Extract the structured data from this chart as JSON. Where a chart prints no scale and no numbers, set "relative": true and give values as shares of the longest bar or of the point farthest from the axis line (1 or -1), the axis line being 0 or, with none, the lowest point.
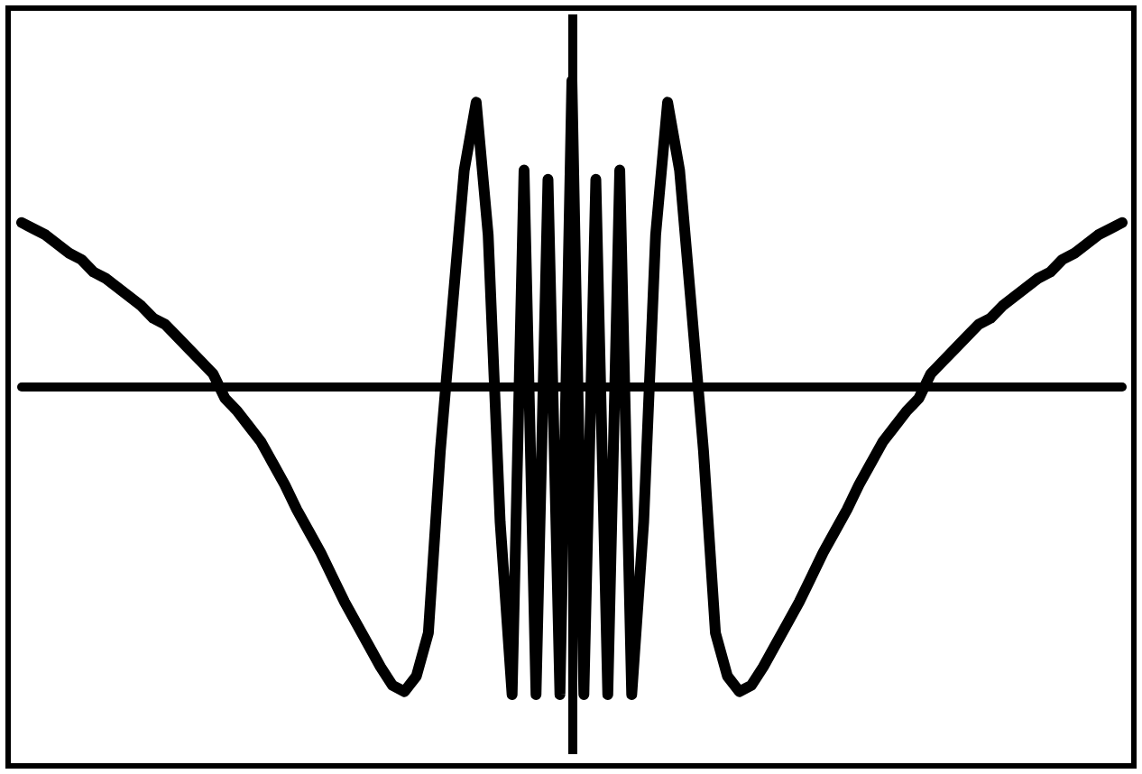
{
  "chart_data": {
    "type": "line",
    "relative": true,
    "grid": false,
    "line_style": "solid",
    "categories": [
      null,
      null,
      null,
      null,
      null,
      null,
      null,
      null,
      null,
      null,
      null,
      null,
      null,
      null,
      null,
      null,
      null,
      null,
      null,
      null,
      null,
      null,
      null,
      null,
      null,
      null,
      null,
      null,
      null,
      null,
      null,
      null,
      null,
      null,
      null,
      null,
      null,
      null,
      null,
      null,
      null,
      null,
      null,
      null,
      null,
      null,
      null,
      null,
      null,
      null,
      null,
      null,
      null,
      null,
      null,
      null,
      null,
      null,
      null,
      null,
      null,
      null,
      null,
      null,
      null,
      null,
      null,
      null,
      null,
      null,
      null,
      null,
      null,
      null,
      null,
      null,
      null,
      null,
      null,
      null,
      null,
      null,
      null,
      null,
      null,
      null,
      null,
      null,
      null,
      null,
      null,
      null,
      null
    ],
    "series": [
      {
        "color": "#000000",
        "values": [
          0.53,
          0.51,
          0.49,
          0.46,
          0.43,
          0.41,
          0.37,
          0.35,
          0.32,
          0.29,
          0.26,
          0.22,
          0.2,
          0.16,
          0.12,
          0.08,
          0.04,
          -0.04,
          -0.08,
          -0.13,
          -0.18,
          -0.25,
          -0.32,
          -0.4,
          -0.47,
          -0.54,
          -0.62,
          -0.7,
          -0.77,
          -0.84,
          -0.91,
          -0.97,
          -0.99,
          -0.94,
          -0.8,
          -0.21,
          0.25,
          0.7,
          0.92,
          0.49,
          -0.44,
          -1,
          0.7,
          -1,
          0.67,
          -1,
          0.99,
          -1,
          0.67,
          -1,
          0.7,
          -1,
          -0.44,
          0.49,
          0.92,
          0.7,
          0.25,
          -0.21,
          -0.8,
          -0.94,
          -0.99,
          -0.97,
          -0.91,
          -0.84,
          -0.77,
          -0.7,
          -0.62,
          -0.54,
          -0.47,
          -0.4,
          -0.32,
          -0.25,
          -0.18,
          -0.13,
          -0.08,
          -0.04,
          0.04,
          0.08,
          0.12,
          0.16,
          0.2,
          0.22,
          0.26,
          0.29,
          0.32,
          0.35,
          0.37,
          0.41,
          0.43,
          0.46,
          0.49,
          0.51,
          0.53
        ]
      }
    ]
  }
}
